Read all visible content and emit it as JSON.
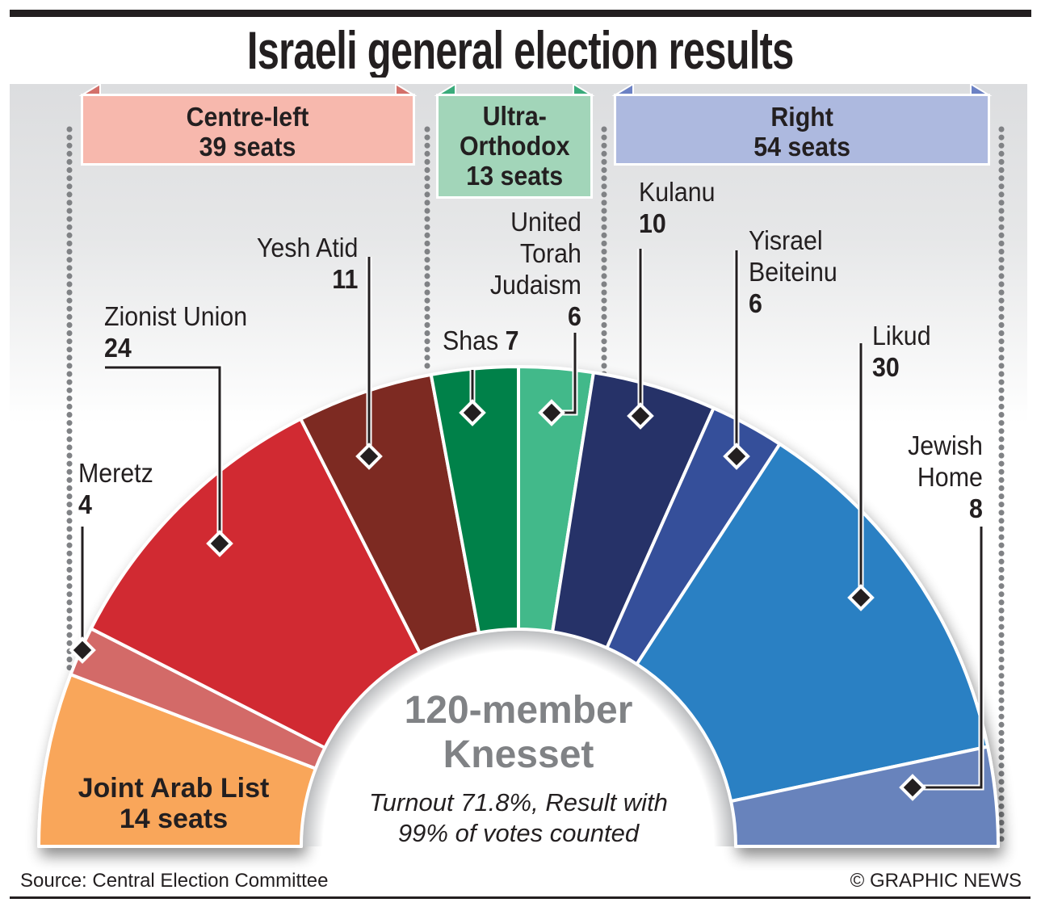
{
  "title": "Israeli general election results",
  "blocs": [
    {
      "name": "Centre-left",
      "seats_label": "39 seats",
      "fill": "#f7b8ad",
      "corner": "#d3706a"
    },
    {
      "name_lines": [
        "Ultra-",
        "Orthodox"
      ],
      "seats_label": "13 seats",
      "fill": "#a2d5b9",
      "corner": "#3aab7b"
    },
    {
      "name": "Right",
      "seats_label": "54 seats",
      "fill": "#adb9df",
      "corner": "#6b81c4"
    }
  ],
  "center": {
    "line1": "120-member",
    "line2": "Knesset",
    "note1": "Turnout 71.8%, Result with",
    "note2": "99% of votes counted"
  },
  "labels": {
    "joint_arab_list": {
      "name": "Joint Arab List",
      "seats": "14 seats"
    },
    "meretz": {
      "name": "Meretz",
      "value": "4"
    },
    "zionist_union": {
      "name": "Zionist Union",
      "value": "24"
    },
    "yesh_atid": {
      "name": "Yesh Atid",
      "value": "11"
    },
    "shas": {
      "name": "Shas",
      "value": "7"
    },
    "utj": {
      "line1": "United",
      "line2": "Torah",
      "line3": "Judaism",
      "value": "6"
    },
    "kulanu": {
      "name": "Kulanu",
      "value": "10"
    },
    "yisrael_beiteinu": {
      "line1": "Yisrael",
      "line2": "Beiteinu",
      "value": "6"
    },
    "likud": {
      "name": "Likud",
      "value": "30"
    },
    "jewish_home": {
      "line1": "Jewish",
      "line2": "Home",
      "value": "8"
    }
  },
  "footer": {
    "source": "Source: Central Election Committee",
    "credit": "© GRAPHIC NEWS"
  },
  "chart_data": {
    "type": "pie",
    "variant": "half-donut (parliament)",
    "title": "Israeli general election results",
    "total_seats": 120,
    "categories": [
      "Joint Arab List",
      "Meretz",
      "Zionist Union",
      "Yesh Atid",
      "Shas",
      "United Torah Judaism",
      "Kulanu",
      "Yisrael Beiteinu",
      "Likud",
      "Jewish Home"
    ],
    "values": [
      14,
      4,
      24,
      11,
      7,
      6,
      10,
      6,
      30,
      8
    ],
    "colors": [
      "#f9a65a",
      "#d36b67",
      "#d12c31",
      "#7d2a24",
      "#008149",
      "#42b98a",
      "#263168",
      "#354f9a",
      "#2c80c3",
      "#6883bc"
    ],
    "groups": [
      {
        "name": "Centre-left",
        "seats": 39,
        "members": [
          "Meretz",
          "Zionist Union",
          "Yesh Atid"
        ]
      },
      {
        "name": "Ultra-Orthodox",
        "seats": 13,
        "members": [
          "Shas",
          "United Torah Judaism"
        ]
      },
      {
        "name": "Right",
        "seats": 54,
        "members": [
          "Kulanu",
          "Yisrael Beiteinu",
          "Likud",
          "Jewish Home"
        ]
      }
    ]
  }
}
